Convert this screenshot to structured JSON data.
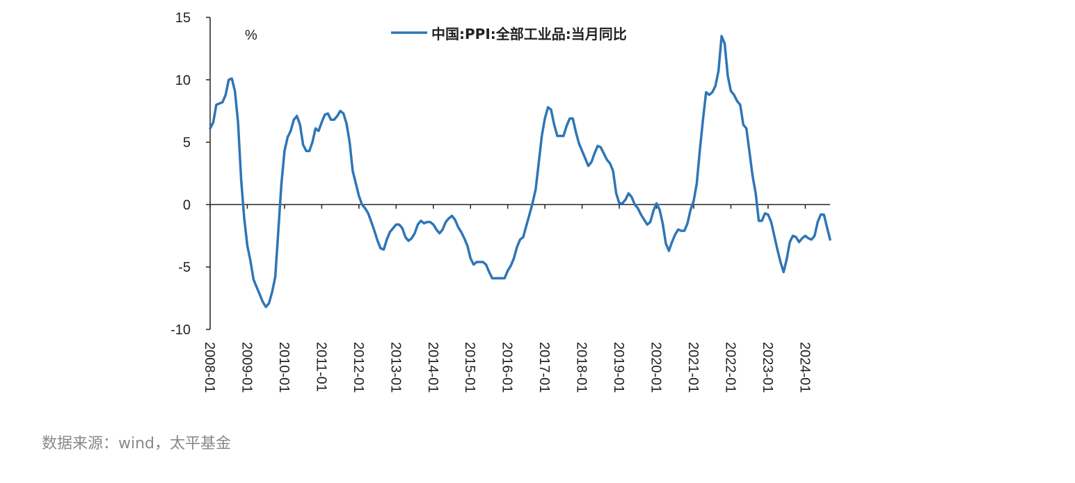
{
  "chart_data": {
    "type": "line",
    "unit": "%",
    "series": [
      {
        "name": "中国:PPI:全部工业品:当月同比",
        "color": "#2e75b6",
        "points": [
          [
            "2008-01",
            6.1
          ],
          [
            "2008-02",
            6.6
          ],
          [
            "2008-03",
            8.0
          ],
          [
            "2008-04",
            8.1
          ],
          [
            "2008-05",
            8.2
          ],
          [
            "2008-06",
            8.8
          ],
          [
            "2008-07",
            10.0
          ],
          [
            "2008-08",
            10.1
          ],
          [
            "2008-09",
            9.1
          ],
          [
            "2008-10",
            6.6
          ],
          [
            "2008-11",
            2.0
          ],
          [
            "2008-12",
            -1.1
          ],
          [
            "2009-01",
            -3.3
          ],
          [
            "2009-02",
            -4.5
          ],
          [
            "2009-03",
            -6.0
          ],
          [
            "2009-04",
            -6.6
          ],
          [
            "2009-05",
            -7.2
          ],
          [
            "2009-06",
            -7.8
          ],
          [
            "2009-07",
            -8.2
          ],
          [
            "2009-08",
            -7.9
          ],
          [
            "2009-09",
            -7.0
          ],
          [
            "2009-10",
            -5.8
          ],
          [
            "2009-11",
            -2.1
          ],
          [
            "2009-12",
            1.7
          ],
          [
            "2010-01",
            4.3
          ],
          [
            "2010-02",
            5.4
          ],
          [
            "2010-03",
            5.9
          ],
          [
            "2010-04",
            6.8
          ],
          [
            "2010-05",
            7.1
          ],
          [
            "2010-06",
            6.4
          ],
          [
            "2010-07",
            4.8
          ],
          [
            "2010-08",
            4.3
          ],
          [
            "2010-09",
            4.3
          ],
          [
            "2010-10",
            5.0
          ],
          [
            "2010-11",
            6.1
          ],
          [
            "2010-12",
            5.9
          ],
          [
            "2011-01",
            6.6
          ],
          [
            "2011-02",
            7.2
          ],
          [
            "2011-03",
            7.3
          ],
          [
            "2011-04",
            6.8
          ],
          [
            "2011-05",
            6.8
          ],
          [
            "2011-06",
            7.1
          ],
          [
            "2011-07",
            7.5
          ],
          [
            "2011-08",
            7.3
          ],
          [
            "2011-09",
            6.5
          ],
          [
            "2011-10",
            5.0
          ],
          [
            "2011-11",
            2.7
          ],
          [
            "2011-12",
            1.7
          ],
          [
            "2012-01",
            0.7
          ],
          [
            "2012-02",
            0.0
          ],
          [
            "2012-03",
            -0.3
          ],
          [
            "2012-04",
            -0.7
          ],
          [
            "2012-05",
            -1.4
          ],
          [
            "2012-06",
            -2.1
          ],
          [
            "2012-07",
            -2.9
          ],
          [
            "2012-08",
            -3.5
          ],
          [
            "2012-09",
            -3.6
          ],
          [
            "2012-10",
            -2.8
          ],
          [
            "2012-11",
            -2.2
          ],
          [
            "2012-12",
            -1.9
          ],
          [
            "2013-01",
            -1.6
          ],
          [
            "2013-02",
            -1.6
          ],
          [
            "2013-03",
            -1.9
          ],
          [
            "2013-04",
            -2.6
          ],
          [
            "2013-05",
            -2.9
          ],
          [
            "2013-06",
            -2.7
          ],
          [
            "2013-07",
            -2.3
          ],
          [
            "2013-08",
            -1.6
          ],
          [
            "2013-09",
            -1.3
          ],
          [
            "2013-10",
            -1.5
          ],
          [
            "2013-11",
            -1.4
          ],
          [
            "2013-12",
            -1.4
          ],
          [
            "2014-01",
            -1.6
          ],
          [
            "2014-02",
            -2.0
          ],
          [
            "2014-03",
            -2.3
          ],
          [
            "2014-04",
            -2.0
          ],
          [
            "2014-05",
            -1.4
          ],
          [
            "2014-06",
            -1.1
          ],
          [
            "2014-07",
            -0.9
          ],
          [
            "2014-08",
            -1.2
          ],
          [
            "2014-09",
            -1.8
          ],
          [
            "2014-10",
            -2.2
          ],
          [
            "2014-11",
            -2.7
          ],
          [
            "2014-12",
            -3.3
          ],
          [
            "2015-01",
            -4.3
          ],
          [
            "2015-02",
            -4.8
          ],
          [
            "2015-03",
            -4.6
          ],
          [
            "2015-04",
            -4.6
          ],
          [
            "2015-05",
            -4.6
          ],
          [
            "2015-06",
            -4.8
          ],
          [
            "2015-07",
            -5.4
          ],
          [
            "2015-08",
            -5.9
          ],
          [
            "2015-09",
            -5.9
          ],
          [
            "2015-10",
            -5.9
          ],
          [
            "2015-11",
            -5.9
          ],
          [
            "2015-12",
            -5.9
          ],
          [
            "2016-01",
            -5.3
          ],
          [
            "2016-02",
            -4.9
          ],
          [
            "2016-03",
            -4.3
          ],
          [
            "2016-04",
            -3.4
          ],
          [
            "2016-05",
            -2.8
          ],
          [
            "2016-06",
            -2.6
          ],
          [
            "2016-07",
            -1.7
          ],
          [
            "2016-08",
            -0.8
          ],
          [
            "2016-09",
            0.1
          ],
          [
            "2016-10",
            1.2
          ],
          [
            "2016-11",
            3.3
          ],
          [
            "2016-12",
            5.5
          ],
          [
            "2017-01",
            6.9
          ],
          [
            "2017-02",
            7.8
          ],
          [
            "2017-03",
            7.6
          ],
          [
            "2017-04",
            6.4
          ],
          [
            "2017-05",
            5.5
          ],
          [
            "2017-06",
            5.5
          ],
          [
            "2017-07",
            5.5
          ],
          [
            "2017-08",
            6.3
          ],
          [
            "2017-09",
            6.9
          ],
          [
            "2017-10",
            6.9
          ],
          [
            "2017-11",
            5.8
          ],
          [
            "2017-12",
            4.9
          ],
          [
            "2018-01",
            4.3
          ],
          [
            "2018-02",
            3.7
          ],
          [
            "2018-03",
            3.1
          ],
          [
            "2018-04",
            3.4
          ],
          [
            "2018-05",
            4.1
          ],
          [
            "2018-06",
            4.7
          ],
          [
            "2018-07",
            4.6
          ],
          [
            "2018-08",
            4.1
          ],
          [
            "2018-09",
            3.6
          ],
          [
            "2018-10",
            3.3
          ],
          [
            "2018-11",
            2.7
          ],
          [
            "2018-12",
            0.9
          ],
          [
            "2019-01",
            0.1
          ],
          [
            "2019-02",
            0.1
          ],
          [
            "2019-03",
            0.4
          ],
          [
            "2019-04",
            0.9
          ],
          [
            "2019-05",
            0.6
          ],
          [
            "2019-06",
            0.0
          ],
          [
            "2019-07",
            -0.3
          ],
          [
            "2019-08",
            -0.8
          ],
          [
            "2019-09",
            -1.2
          ],
          [
            "2019-10",
            -1.6
          ],
          [
            "2019-11",
            -1.4
          ],
          [
            "2019-12",
            -0.5
          ],
          [
            "2020-01",
            0.1
          ],
          [
            "2020-02",
            -0.4
          ],
          [
            "2020-03",
            -1.5
          ],
          [
            "2020-04",
            -3.1
          ],
          [
            "2020-05",
            -3.7
          ],
          [
            "2020-06",
            -3.0
          ],
          [
            "2020-07",
            -2.4
          ],
          [
            "2020-08",
            -2.0
          ],
          [
            "2020-09",
            -2.1
          ],
          [
            "2020-10",
            -2.1
          ],
          [
            "2020-11",
            -1.5
          ],
          [
            "2020-12",
            -0.4
          ],
          [
            "2021-01",
            0.3
          ],
          [
            "2021-02",
            1.7
          ],
          [
            "2021-03",
            4.4
          ],
          [
            "2021-04",
            6.8
          ],
          [
            "2021-05",
            9.0
          ],
          [
            "2021-06",
            8.8
          ],
          [
            "2021-07",
            9.0
          ],
          [
            "2021-08",
            9.5
          ],
          [
            "2021-09",
            10.7
          ],
          [
            "2021-10",
            13.5
          ],
          [
            "2021-11",
            12.9
          ],
          [
            "2021-12",
            10.3
          ],
          [
            "2022-01",
            9.1
          ],
          [
            "2022-02",
            8.8
          ],
          [
            "2022-03",
            8.3
          ],
          [
            "2022-04",
            8.0
          ],
          [
            "2022-05",
            6.4
          ],
          [
            "2022-06",
            6.1
          ],
          [
            "2022-07",
            4.2
          ],
          [
            "2022-08",
            2.3
          ],
          [
            "2022-09",
            0.9
          ],
          [
            "2022-10",
            -1.3
          ],
          [
            "2022-11",
            -1.3
          ],
          [
            "2022-12",
            -0.7
          ],
          [
            "2023-01",
            -0.8
          ],
          [
            "2023-02",
            -1.4
          ],
          [
            "2023-03",
            -2.5
          ],
          [
            "2023-04",
            -3.6
          ],
          [
            "2023-05",
            -4.6
          ],
          [
            "2023-06",
            -5.4
          ],
          [
            "2023-07",
            -4.4
          ],
          [
            "2023-08",
            -3.0
          ],
          [
            "2023-09",
            -2.5
          ],
          [
            "2023-10",
            -2.6
          ],
          [
            "2023-11",
            -3.0
          ],
          [
            "2023-12",
            -2.7
          ],
          [
            "2024-01",
            -2.5
          ],
          [
            "2024-02",
            -2.7
          ],
          [
            "2024-03",
            -2.8
          ],
          [
            "2024-04",
            -2.5
          ],
          [
            "2024-05",
            -1.4
          ],
          [
            "2024-06",
            -0.8
          ],
          [
            "2024-07",
            -0.8
          ],
          [
            "2024-08",
            -1.8
          ],
          [
            "2024-09",
            -2.8
          ]
        ]
      }
    ],
    "x_ticks": [
      "2008-01",
      "2009-01",
      "2010-01",
      "2011-01",
      "2012-01",
      "2013-01",
      "2014-01",
      "2015-01",
      "2016-01",
      "2017-01",
      "2018-01",
      "2019-01",
      "2020-01",
      "2021-01",
      "2022-01",
      "2023-01",
      "2024-01"
    ],
    "y_ticks": [
      15,
      10,
      5,
      0,
      -5,
      -10
    ],
    "y_tick_labels": [
      "15",
      "10",
      "5",
      "0",
      "-5",
      "-10"
    ],
    "ylim": [
      -10,
      15
    ],
    "grid": false,
    "legend_position": "top-center"
  },
  "source_note": "数据来源：wind，太平基金"
}
